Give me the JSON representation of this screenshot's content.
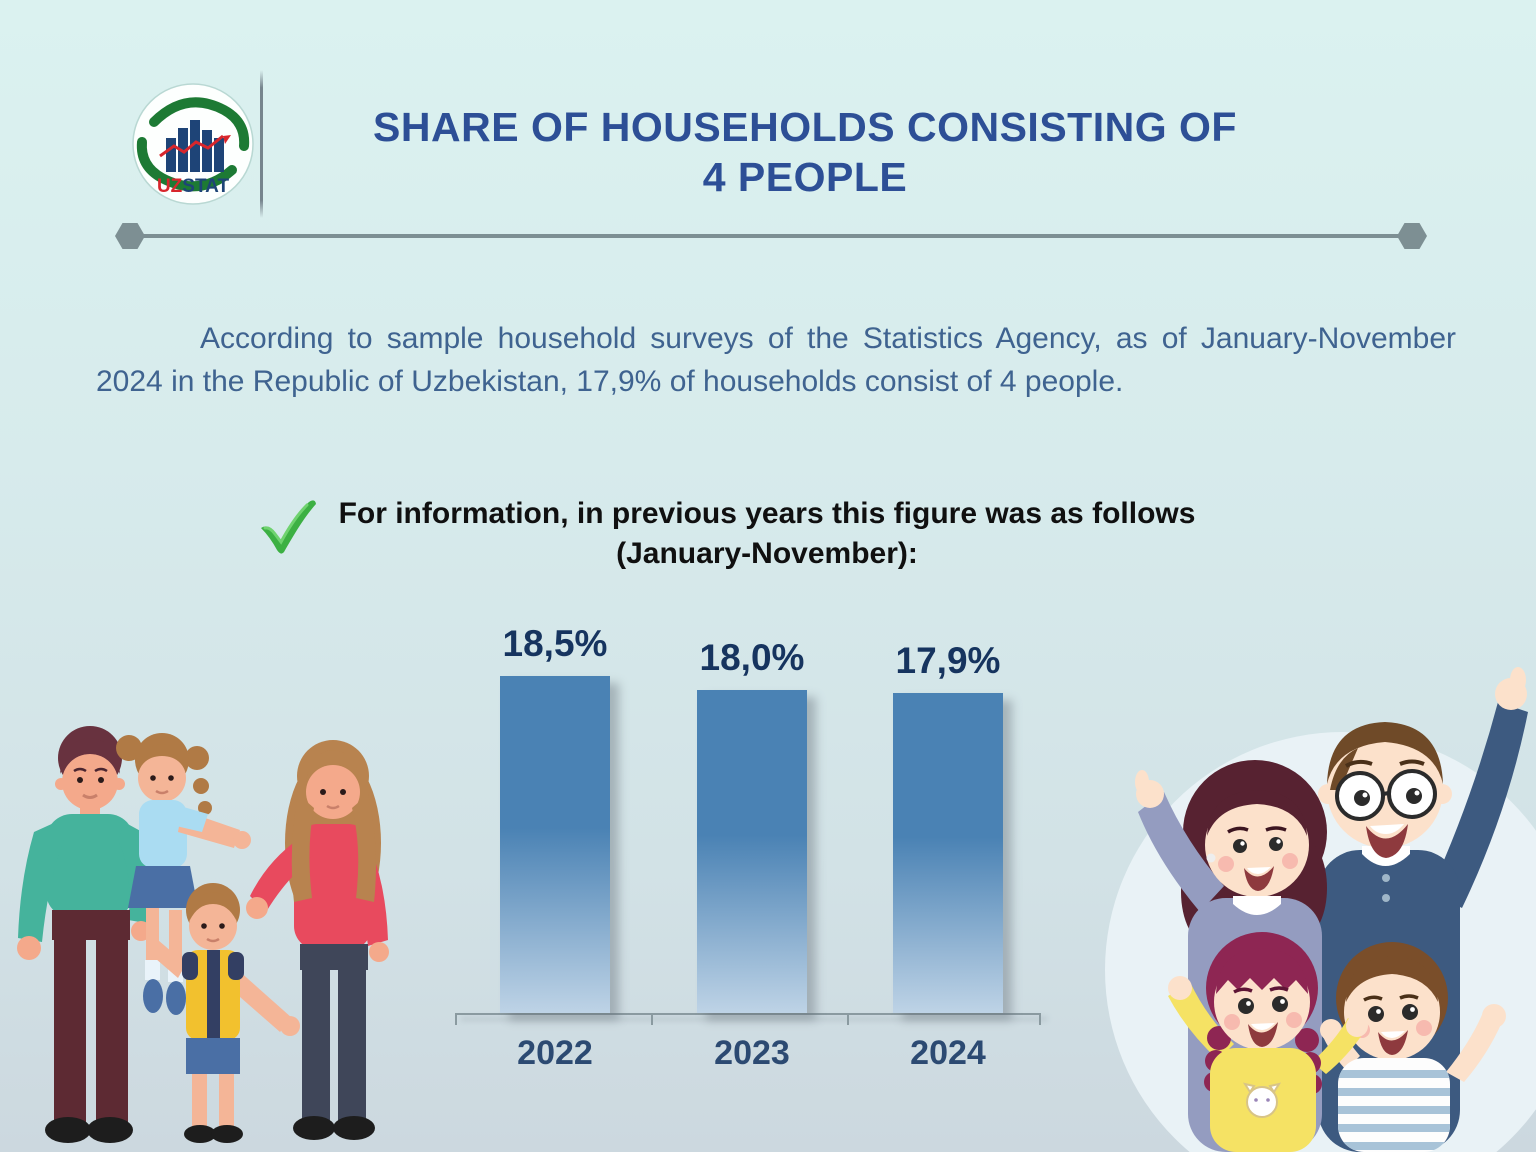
{
  "header": {
    "logo": {
      "uz": "UZ",
      "stat": "STAT"
    },
    "title_line1": "SHARE OF HOUSEHOLDS CONSISTING OF",
    "title_line2": "4 PEOPLE"
  },
  "paragraph": "According to sample household surveys of the Statistics Agency, as of January-November 2024 in the Republic of Uzbekistan, 17,9% of households consist of 4 people.",
  "note": {
    "line1": "For information, in previous years this figure was as follows",
    "line2": "(January-November):"
  },
  "chart_data": {
    "type": "bar",
    "categories": [
      "2022",
      "2023",
      "2024"
    ],
    "values": [
      18.5,
      18.0,
      17.9
    ],
    "value_labels": [
      "18,5%",
      "18,0%",
      "17,9%"
    ],
    "title": "",
    "xlabel": "",
    "ylabel": "",
    "ylim": [
      0,
      20
    ],
    "grid": false,
    "legend": "none",
    "bar_color_top": "#4a82b4",
    "bar_color_bottom": "#bed3e6",
    "value_label_color": "#16345f",
    "category_label_color": "#2c4a72"
  },
  "colors": {
    "background_top": "#dbf2f0",
    "background_bottom": "#ccd8df",
    "title": "#2d4f96",
    "paragraph": "#3f6390",
    "note_text": "#101010",
    "check_green": "#3cb043",
    "divider": "#7d8f93",
    "logo_navy": "#1e4477",
    "logo_red": "#d8262c",
    "logo_green": "#1d7a34"
  },
  "icons": {
    "check": "check-icon",
    "logo": "uzstat-logo"
  },
  "illustrations": {
    "left_family": "flat family of four standing (father, girl on shoulders, boy, mother)",
    "right_family": "cartoon family of four waving inside a light circle"
  }
}
